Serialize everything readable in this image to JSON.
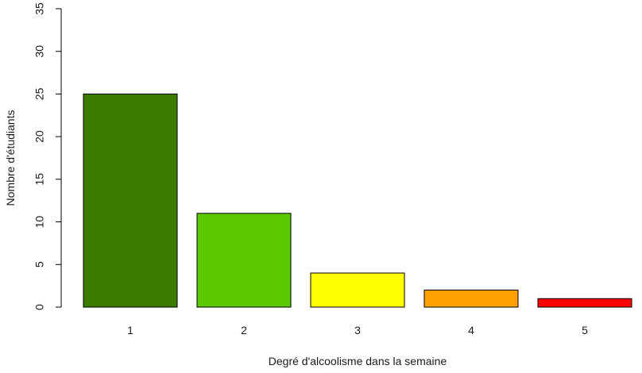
{
  "chart_data": {
    "type": "bar",
    "title": "",
    "xlabel": "Degré d'alcoolisme dans la semaine",
    "ylabel": "Nombre d'étudiants",
    "categories": [
      "1",
      "2",
      "3",
      "4",
      "5"
    ],
    "values": [
      25,
      11,
      4,
      2,
      1
    ],
    "colors": [
      "#3a7b00",
      "#5bc800",
      "#ffff00",
      "#ff9f00",
      "#ff0000"
    ],
    "ylim": [
      0,
      35
    ],
    "yticks": [
      0,
      5,
      10,
      15,
      20,
      25,
      30,
      35
    ],
    "grid": false,
    "legend": false
  }
}
